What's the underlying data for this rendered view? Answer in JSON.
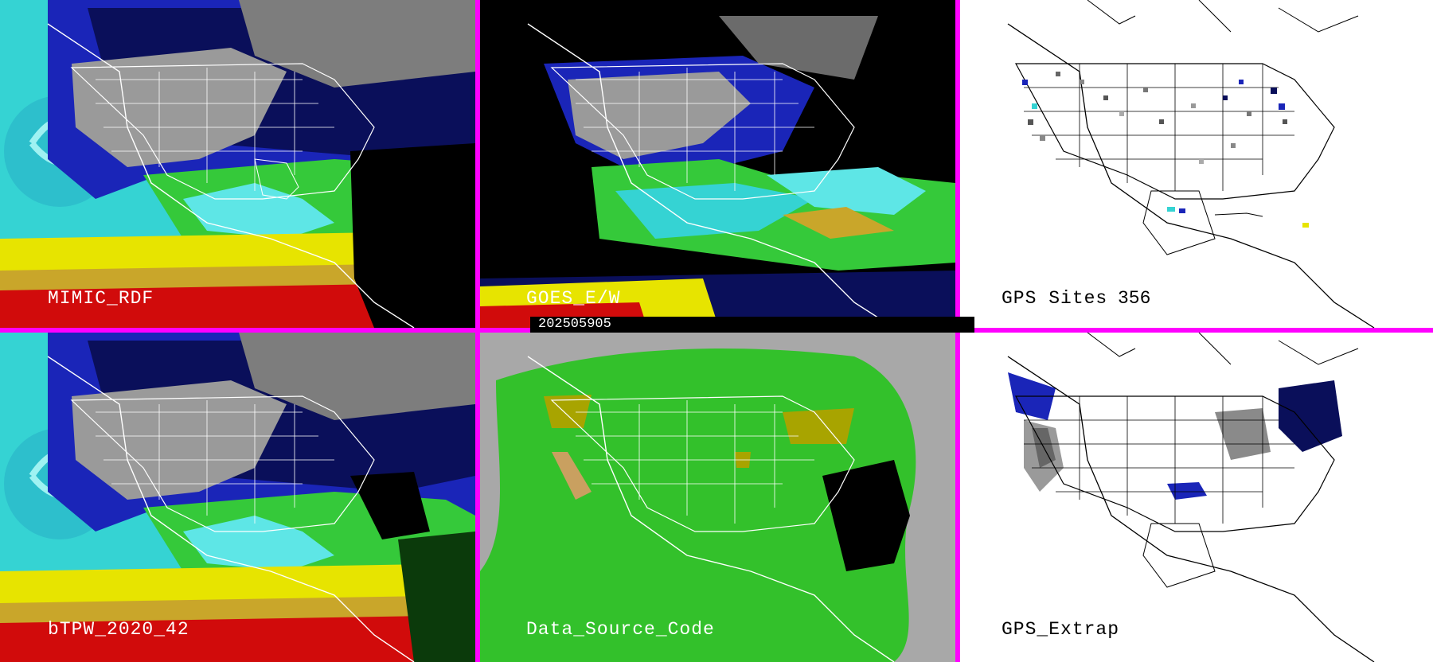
{
  "panels": [
    {
      "id": "p1",
      "title": "MIMIC_RDF",
      "theme": "dark"
    },
    {
      "id": "p2",
      "title": "GOES_E/W",
      "theme": "dark"
    },
    {
      "id": "p3",
      "title": "GPS Sites",
      "theme": "light",
      "count": "356"
    },
    {
      "id": "p4",
      "title": "bTPW_2020_42",
      "theme": "dark"
    },
    {
      "id": "p5",
      "title": "Data_Source_Code",
      "theme": "dark"
    },
    {
      "id": "p6",
      "title": "GPS_Extrap",
      "theme": "light"
    }
  ],
  "timestamp": "202505905",
  "colors": {
    "separator": "#ff00ff",
    "ocean_cyan": "#35d3d3",
    "blue": "#1520a8",
    "navy": "#0a0f5a",
    "green": "#35c93a",
    "yellow": "#e7e400",
    "red": "#d10b0b",
    "gray": "#9a9a9a",
    "black": "#000000",
    "white": "#ffffff"
  }
}
